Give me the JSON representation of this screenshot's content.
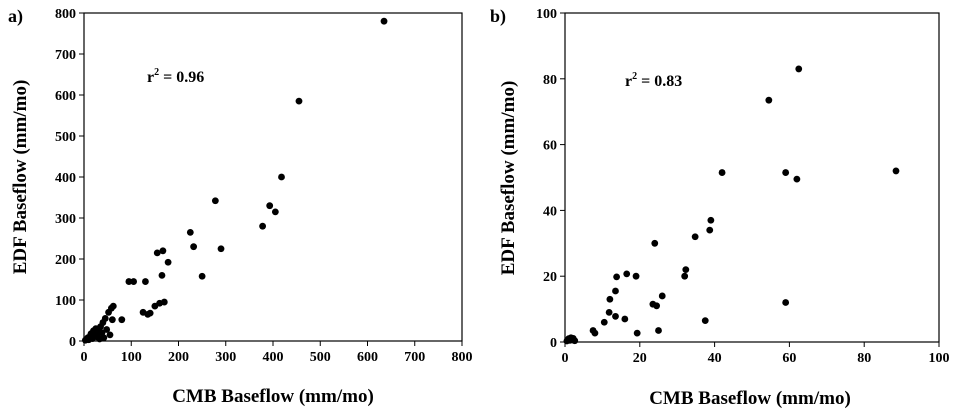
{
  "chart_data": [
    {
      "type": "scatter",
      "panel_label": "a)",
      "xlabel": "CMB Baseflow (mm/mo)",
      "ylabel": "EDF Baseflow (mm/mo)",
      "xlim": [
        0,
        800
      ],
      "ylim": [
        0,
        800
      ],
      "xticks": [
        "0",
        "100",
        "200",
        "300",
        "400",
        "500",
        "600",
        "700",
        "800"
      ],
      "yticks": [
        "0",
        "100",
        "200",
        "300",
        "400",
        "500",
        "600",
        "700",
        "800"
      ],
      "annotation": {
        "base": "r",
        "sup": "2",
        "rest": " = 0.96"
      },
      "grid": false,
      "color": "#000000",
      "points": [
        [
          3,
          2
        ],
        [
          6,
          4
        ],
        [
          8,
          8
        ],
        [
          10,
          3
        ],
        [
          13,
          12
        ],
        [
          15,
          18
        ],
        [
          18,
          6
        ],
        [
          20,
          25
        ],
        [
          22,
          15
        ],
        [
          25,
          30
        ],
        [
          28,
          10
        ],
        [
          30,
          22
        ],
        [
          33,
          5
        ],
        [
          35,
          35
        ],
        [
          38,
          20
        ],
        [
          40,
          45
        ],
        [
          42,
          8
        ],
        [
          45,
          55
        ],
        [
          48,
          28
        ],
        [
          52,
          70
        ],
        [
          55,
          15
        ],
        [
          58,
          80
        ],
        [
          60,
          52
        ],
        [
          62,
          85
        ],
        [
          80,
          52
        ],
        [
          95,
          145
        ],
        [
          105,
          145
        ],
        [
          125,
          70
        ],
        [
          130,
          145
        ],
        [
          135,
          65
        ],
        [
          140,
          68
        ],
        [
          150,
          85
        ],
        [
          155,
          215
        ],
        [
          160,
          92
        ],
        [
          165,
          160
        ],
        [
          167,
          220
        ],
        [
          170,
          95
        ],
        [
          178,
          192
        ],
        [
          225,
          265
        ],
        [
          232,
          230
        ],
        [
          250,
          158
        ],
        [
          278,
          342
        ],
        [
          290,
          225
        ],
        [
          378,
          280
        ],
        [
          393,
          330
        ],
        [
          405,
          315
        ],
        [
          418,
          400
        ],
        [
          455,
          585
        ],
        [
          635,
          780
        ]
      ]
    },
    {
      "type": "scatter",
      "panel_label": "b)",
      "xlabel": "CMB Baseflow (mm/mo)",
      "ylabel": "EDF Baseflow (mm/mo)",
      "xlim": [
        0,
        100
      ],
      "ylim": [
        0,
        100
      ],
      "xticks": [
        "0",
        "20",
        "40",
        "60",
        "80",
        "100"
      ],
      "yticks": [
        "0",
        "20",
        "40",
        "60",
        "80",
        "100"
      ],
      "annotation": {
        "base": "r",
        "sup": "2",
        "rest": " = 0.83"
      },
      "grid": false,
      "color": "#000000",
      "points": [
        [
          0.5,
          0.3
        ],
        [
          1.0,
          1.0
        ],
        [
          1.3,
          0.5
        ],
        [
          1.6,
          1.3
        ],
        [
          2.0,
          0.6
        ],
        [
          2.2,
          1.1
        ],
        [
          2.6,
          0.4
        ],
        [
          7.5,
          3.5
        ],
        [
          8.0,
          2.7
        ],
        [
          10.5,
          6.0
        ],
        [
          11.8,
          9.0
        ],
        [
          12.0,
          13.0
        ],
        [
          13.5,
          7.8
        ],
        [
          13.5,
          15.5
        ],
        [
          13.8,
          19.8
        ],
        [
          16.0,
          7.0
        ],
        [
          16.5,
          20.7
        ],
        [
          19.0,
          20.0
        ],
        [
          19.3,
          2.7
        ],
        [
          23.5,
          11.5
        ],
        [
          24.0,
          30.0
        ],
        [
          24.5,
          11.0
        ],
        [
          25.0,
          3.5
        ],
        [
          26.0,
          14.0
        ],
        [
          32.0,
          20.0
        ],
        [
          32.3,
          22.0
        ],
        [
          34.8,
          32.0
        ],
        [
          37.5,
          6.5
        ],
        [
          38.7,
          34.0
        ],
        [
          39.0,
          37.0
        ],
        [
          42.0,
          51.5
        ],
        [
          54.5,
          73.5
        ],
        [
          59.0,
          12.0
        ],
        [
          59.0,
          51.5
        ],
        [
          62.0,
          49.5
        ],
        [
          62.5,
          83.0
        ],
        [
          88.5,
          52.0
        ]
      ]
    }
  ]
}
